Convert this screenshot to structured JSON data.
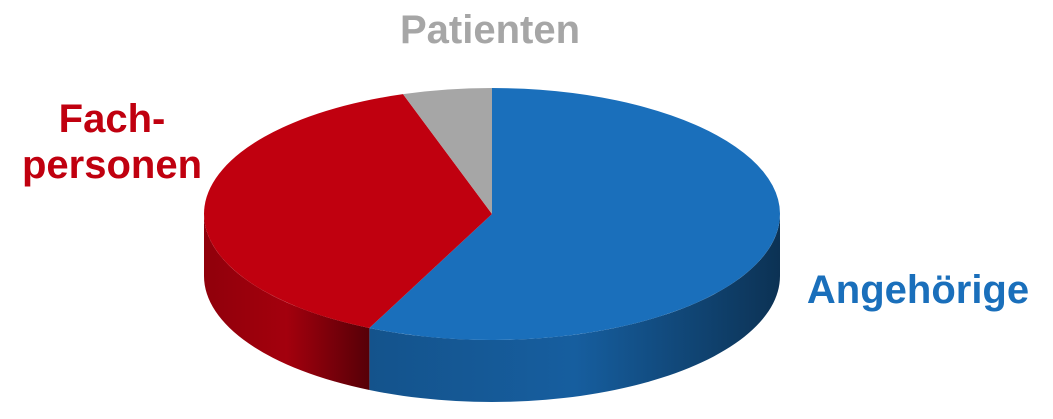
{
  "chart_data": {
    "type": "pie3d",
    "categories": [
      "Angehörige",
      "Fach-\npersonen",
      "Patienten"
    ],
    "values": [
      57,
      38,
      5
    ],
    "colors": [
      "#1a6fbb",
      "#c0000f",
      "#a6a6a6"
    ]
  }
}
